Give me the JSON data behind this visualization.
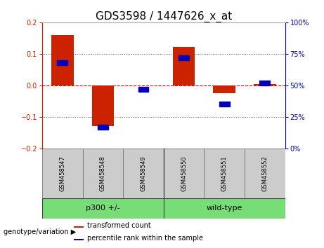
{
  "title": "GDS3598 / 1447626_x_at",
  "samples": [
    "GSM458547",
    "GSM458548",
    "GSM458549",
    "GSM458550",
    "GSM458551",
    "GSM458552"
  ],
  "red_bars": [
    0.16,
    -0.13,
    0.0,
    0.122,
    -0.025,
    0.005
  ],
  "blue_squares_pct": [
    68,
    17,
    47,
    72,
    35,
    52
  ],
  "ylim": [
    -0.2,
    0.2
  ],
  "left_yticks": [
    -0.2,
    -0.1,
    0.0,
    0.1,
    0.2
  ],
  "right_yticks_pct": [
    0,
    25,
    50,
    75,
    100
  ],
  "red_color": "#cc2200",
  "blue_color": "#0000bb",
  "bar_width": 0.55,
  "group1_label": "p300 +/-",
  "group2_label": "wild-type",
  "group1_color": "#77dd77",
  "group2_color": "#77dd77",
  "sample_box_color": "#cccccc",
  "genotype_label": "genotype/variation",
  "legend_red": "transformed count",
  "legend_blue": "percentile rank within the sample",
  "hline_color": "#cc0000",
  "dotted_color": "#555555",
  "title_fontsize": 11,
  "tick_fontsize": 7,
  "sample_fontsize": 6,
  "group_fontsize": 8,
  "legend_fontsize": 7
}
